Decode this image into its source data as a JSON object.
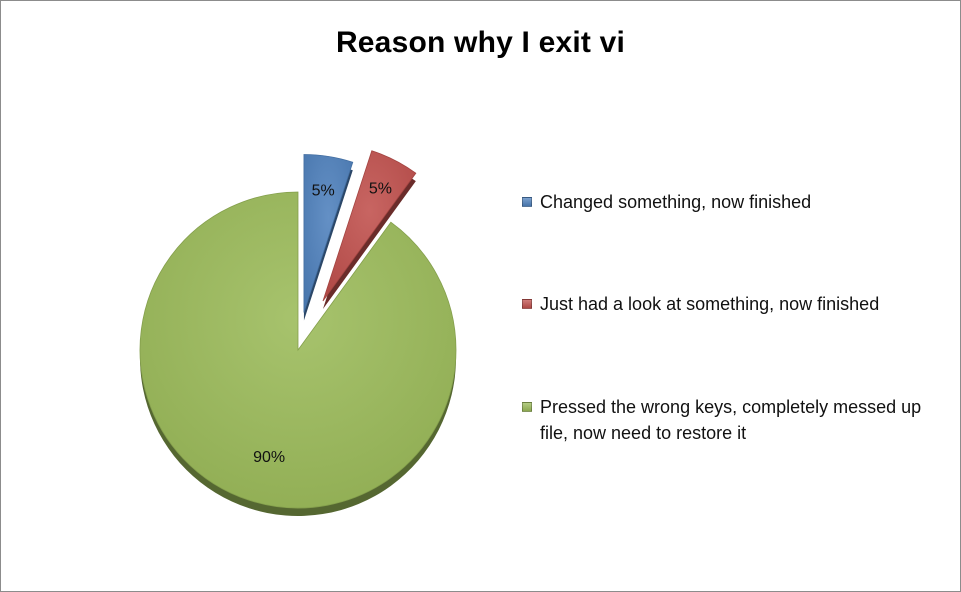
{
  "chart_data": {
    "type": "pie",
    "title": "Reason why I exit vi",
    "exploded": true,
    "legend_position": "right",
    "slices": [
      {
        "label": "Changed something, now finished",
        "value": 5,
        "value_label": "5%",
        "color": "#4f81bd"
      },
      {
        "label": "Just had a look at something, now finished",
        "value": 5,
        "value_label": "5%",
        "color": "#c0504d"
      },
      {
        "label": "Pressed the wrong keys, completely messed up file, now need to restore it",
        "value": 90,
        "value_label": "90%",
        "color": "#9bbb59"
      }
    ]
  }
}
